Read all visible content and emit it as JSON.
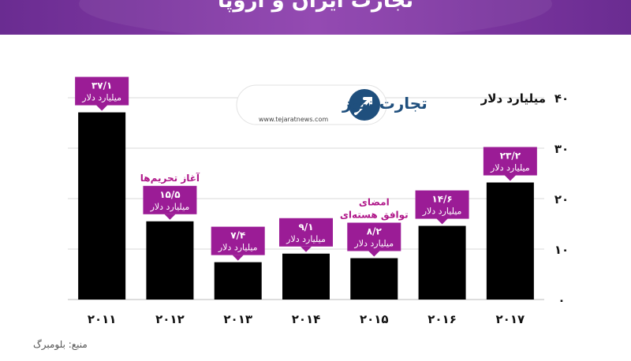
{
  "header": {
    "title": "تجارت ایران و اروپا"
  },
  "source": "منبع: بلومبرگ",
  "logo": {
    "name": "تجارت نیوز",
    "url": "www.tejaratnews.com"
  },
  "colors": {
    "bar": "#000000",
    "label_box": "#9b1c96",
    "event_text": "#b0188a",
    "header": "#7a3599"
  },
  "chart_data": {
    "type": "bar",
    "categories": [
      "۲۰۱۱",
      "۲۰۱۲",
      "۲۰۱۳",
      "۲۰۱۴",
      "۲۰۱۵",
      "۲۰۱۶",
      "۲۰۱۷"
    ],
    "values": [
      37.1,
      15.5,
      7.4,
      9.1,
      8.2,
      14.6,
      23.2
    ],
    "value_labels": [
      "۳۷/۱",
      "۱۵/۵",
      "۷/۴",
      "۹/۱",
      "۸/۲",
      "۱۴/۶",
      "۲۳/۲"
    ],
    "unit_label": "میلیارد دلار",
    "ylabel": "میلیارد دلار",
    "y_ticks": [
      0,
      10,
      20,
      30,
      40
    ],
    "y_tick_labels": [
      "۰",
      "۱۰",
      "۲۰",
      "۳۰",
      "۴۰"
    ],
    "ylim": [
      0,
      40
    ],
    "grid": true,
    "annotations": [
      {
        "category_index": 1,
        "text": [
          "آغاز تحریم‌ها"
        ]
      },
      {
        "category_index": 4,
        "text": [
          "امضای",
          "توافق هسته‌ای"
        ]
      }
    ]
  }
}
